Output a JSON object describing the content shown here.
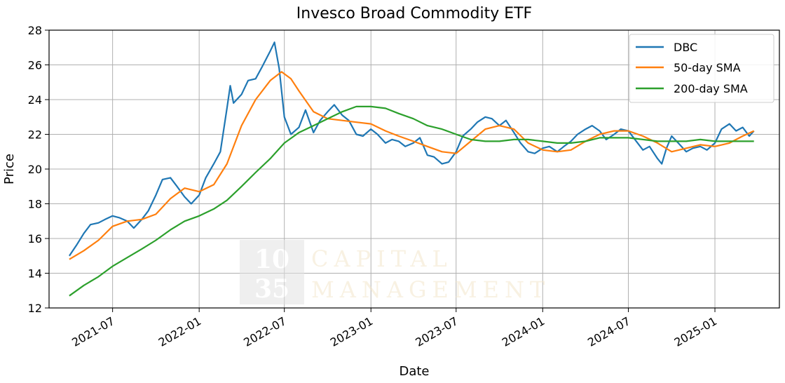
{
  "chart_data": {
    "type": "line",
    "title": "Invesco Broad Commodity ETF",
    "xlabel": "Date",
    "ylabel": "Price",
    "ylim": [
      12,
      28
    ],
    "xlim": [
      "2021-02-16",
      "2025-05-18"
    ],
    "yticks": [
      12,
      14,
      16,
      18,
      20,
      22,
      24,
      26,
      28
    ],
    "xticks": [
      "2021-07",
      "2022-01",
      "2022-07",
      "2023-01",
      "2023-07",
      "2024-01",
      "2024-07",
      "2025-01"
    ],
    "grid": true,
    "legend_position": "top-right",
    "series": [
      {
        "name": "DBC",
        "color": "#1f77b4",
        "x": [
          "2021-03-31",
          "2021-04-15",
          "2021-05-01",
          "2021-05-15",
          "2021-06-01",
          "2021-06-15",
          "2021-07-01",
          "2021-07-15",
          "2021-08-01",
          "2021-08-15",
          "2021-09-01",
          "2021-09-15",
          "2021-10-01",
          "2021-10-15",
          "2021-11-01",
          "2021-11-15",
          "2021-12-01",
          "2021-12-15",
          "2022-01-01",
          "2022-01-15",
          "2022-02-01",
          "2022-02-15",
          "2022-03-01",
          "2022-03-08",
          "2022-03-15",
          "2022-04-01",
          "2022-04-15",
          "2022-05-01",
          "2022-05-15",
          "2022-06-01",
          "2022-06-10",
          "2022-06-20",
          "2022-07-01",
          "2022-07-15",
          "2022-08-01",
          "2022-08-15",
          "2022-09-01",
          "2022-09-15",
          "2022-10-01",
          "2022-10-15",
          "2022-11-01",
          "2022-11-15",
          "2022-12-01",
          "2022-12-15",
          "2023-01-01",
          "2023-01-15",
          "2023-02-01",
          "2023-02-15",
          "2023-03-01",
          "2023-03-15",
          "2023-04-01",
          "2023-04-15",
          "2023-05-01",
          "2023-05-15",
          "2023-06-01",
          "2023-06-15",
          "2023-07-01",
          "2023-07-15",
          "2023-08-01",
          "2023-08-15",
          "2023-09-01",
          "2023-09-15",
          "2023-10-01",
          "2023-10-15",
          "2023-11-01",
          "2023-11-15",
          "2023-12-01",
          "2023-12-15",
          "2024-01-01",
          "2024-01-15",
          "2024-02-01",
          "2024-02-15",
          "2024-03-01",
          "2024-03-15",
          "2024-04-01",
          "2024-04-15",
          "2024-05-01",
          "2024-05-15",
          "2024-06-01",
          "2024-06-15",
          "2024-07-01",
          "2024-07-15",
          "2024-08-01",
          "2024-08-15",
          "2024-09-01",
          "2024-09-10",
          "2024-09-20",
          "2024-10-01",
          "2024-10-15",
          "2024-11-01",
          "2024-11-15",
          "2024-12-01",
          "2024-12-15",
          "2025-01-01",
          "2025-01-15",
          "2025-02-01",
          "2025-02-15",
          "2025-03-01",
          "2025-03-15",
          "2025-03-25"
        ],
        "values": [
          15.0,
          15.6,
          16.3,
          16.8,
          16.9,
          17.1,
          17.3,
          17.2,
          17.0,
          16.6,
          17.1,
          17.6,
          18.5,
          19.4,
          19.5,
          19.0,
          18.4,
          18.0,
          18.5,
          19.5,
          20.3,
          21.0,
          23.5,
          24.8,
          23.8,
          24.3,
          25.1,
          25.2,
          25.9,
          26.8,
          27.3,
          25.8,
          23.0,
          22.0,
          22.4,
          23.4,
          22.1,
          22.8,
          23.3,
          23.7,
          23.1,
          22.8,
          22.0,
          21.9,
          22.3,
          22.0,
          21.5,
          21.7,
          21.6,
          21.3,
          21.5,
          21.8,
          20.8,
          20.7,
          20.3,
          20.4,
          21.0,
          21.9,
          22.3,
          22.7,
          23.0,
          22.9,
          22.5,
          22.8,
          22.1,
          21.5,
          21.0,
          20.9,
          21.2,
          21.3,
          21.0,
          21.3,
          21.6,
          22.0,
          22.3,
          22.5,
          22.2,
          21.7,
          22.0,
          22.3,
          22.2,
          21.7,
          21.1,
          21.3,
          20.6,
          20.3,
          21.2,
          21.9,
          21.5,
          21.0,
          21.2,
          21.3,
          21.1,
          21.5,
          22.3,
          22.6,
          22.2,
          22.4,
          21.9,
          22.2
        ]
      },
      {
        "name": "50-day SMA",
        "color": "#ff7f0e",
        "x": [
          "2021-03-31",
          "2021-05-01",
          "2021-06-01",
          "2021-07-01",
          "2021-08-01",
          "2021-09-01",
          "2021-10-01",
          "2021-11-01",
          "2021-12-01",
          "2022-01-01",
          "2022-02-01",
          "2022-03-01",
          "2022-04-01",
          "2022-05-01",
          "2022-06-01",
          "2022-06-25",
          "2022-07-15",
          "2022-08-01",
          "2022-09-01",
          "2022-10-01",
          "2022-11-01",
          "2022-12-01",
          "2023-01-01",
          "2023-02-01",
          "2023-03-01",
          "2023-04-01",
          "2023-05-01",
          "2023-06-01",
          "2023-07-01",
          "2023-08-01",
          "2023-09-01",
          "2023-10-01",
          "2023-11-01",
          "2023-12-01",
          "2024-01-01",
          "2024-02-01",
          "2024-03-01",
          "2024-04-01",
          "2024-05-01",
          "2024-06-01",
          "2024-07-01",
          "2024-08-01",
          "2024-09-01",
          "2024-10-01",
          "2024-11-01",
          "2024-12-01",
          "2025-01-01",
          "2025-02-01",
          "2025-03-01",
          "2025-03-25"
        ],
        "values": [
          14.8,
          15.3,
          15.9,
          16.7,
          17.0,
          17.1,
          17.4,
          18.3,
          18.9,
          18.7,
          19.1,
          20.3,
          22.5,
          24.0,
          25.1,
          25.6,
          25.2,
          24.5,
          23.3,
          22.9,
          22.8,
          22.7,
          22.6,
          22.2,
          21.9,
          21.6,
          21.3,
          21.0,
          20.9,
          21.6,
          22.3,
          22.5,
          22.3,
          21.5,
          21.1,
          21.0,
          21.1,
          21.6,
          22.0,
          22.2,
          22.2,
          21.9,
          21.5,
          21.0,
          21.2,
          21.4,
          21.3,
          21.5,
          21.9,
          22.2
        ]
      },
      {
        "name": "200-day SMA",
        "color": "#2ca02c",
        "x": [
          "2021-03-31",
          "2021-05-01",
          "2021-06-01",
          "2021-07-01",
          "2021-08-01",
          "2021-09-01",
          "2021-10-01",
          "2021-11-01",
          "2021-12-01",
          "2022-01-01",
          "2022-02-01",
          "2022-03-01",
          "2022-04-01",
          "2022-05-01",
          "2022-06-01",
          "2022-07-01",
          "2022-08-01",
          "2022-09-01",
          "2022-10-01",
          "2022-11-01",
          "2022-12-01",
          "2023-01-01",
          "2023-02-01",
          "2023-03-01",
          "2023-04-01",
          "2023-05-01",
          "2023-06-01",
          "2023-07-01",
          "2023-08-01",
          "2023-09-01",
          "2023-10-01",
          "2023-11-01",
          "2023-12-01",
          "2024-01-01",
          "2024-02-01",
          "2024-03-01",
          "2024-04-01",
          "2024-05-01",
          "2024-06-01",
          "2024-07-01",
          "2024-08-01",
          "2024-09-01",
          "2024-10-01",
          "2024-11-01",
          "2024-12-01",
          "2025-01-01",
          "2025-02-01",
          "2025-03-01",
          "2025-03-25"
        ],
        "values": [
          12.7,
          13.3,
          13.8,
          14.4,
          14.9,
          15.4,
          15.9,
          16.5,
          17.0,
          17.3,
          17.7,
          18.2,
          19.0,
          19.8,
          20.6,
          21.5,
          22.1,
          22.5,
          22.9,
          23.3,
          23.6,
          23.6,
          23.5,
          23.2,
          22.9,
          22.5,
          22.3,
          22.0,
          21.7,
          21.6,
          21.6,
          21.7,
          21.7,
          21.6,
          21.5,
          21.5,
          21.6,
          21.8,
          21.8,
          21.8,
          21.7,
          21.6,
          21.6,
          21.6,
          21.7,
          21.6,
          21.6,
          21.6,
          21.6
        ]
      }
    ]
  },
  "watermark": {
    "number_top": "10",
    "number_bottom": "35",
    "line1": "CAPITAL",
    "line2": "MANAGEMENT"
  }
}
